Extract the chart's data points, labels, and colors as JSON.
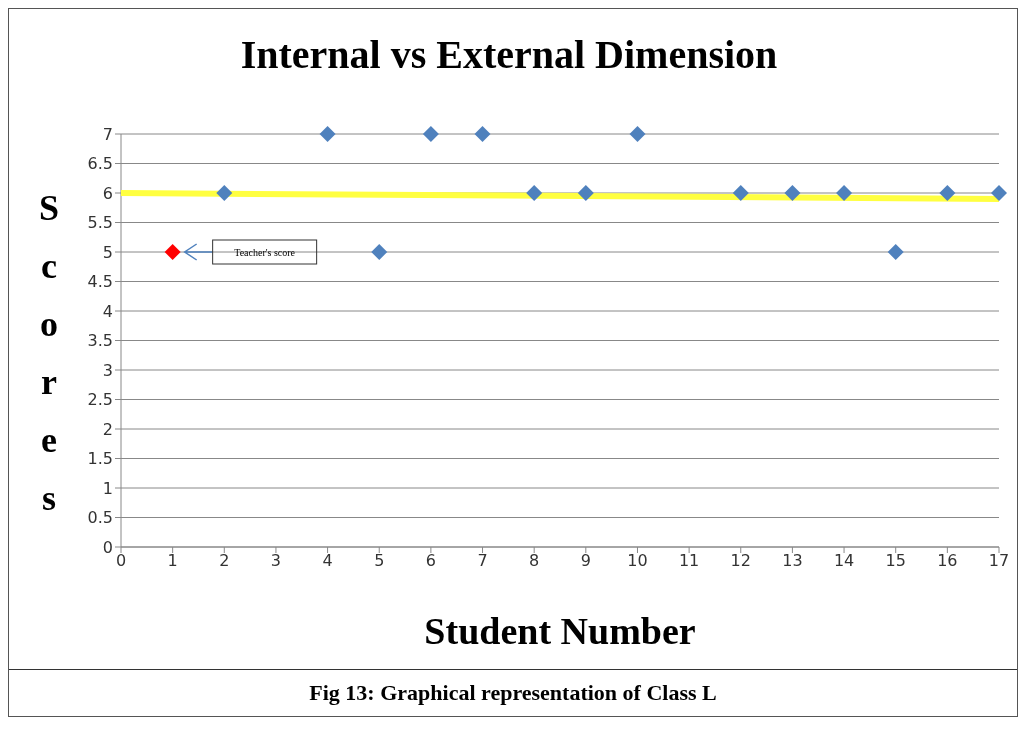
{
  "chart_data": {
    "type": "scatter",
    "title": "Internal vs External Dimension",
    "xlabel": "Student Number",
    "ylabel": "Scores",
    "series": [
      {
        "color": "#4f81bd",
        "x": [
          2,
          4,
          5,
          6,
          7,
          8,
          9,
          10,
          12,
          13,
          14,
          15,
          16,
          17
        ],
        "values": [
          6,
          7,
          5,
          7,
          7,
          6,
          6,
          7,
          6,
          6,
          6,
          5,
          6,
          6
        ]
      },
      {
        "color": "#ff0000",
        "x": [
          1
        ],
        "values": [
          5
        ]
      },
      {
        "type": "line",
        "color": "#ffff40",
        "marker": "none",
        "x": [
          0,
          17
        ],
        "values": [
          6,
          5.9
        ]
      }
    ],
    "xlim": [
      0,
      17
    ],
    "xticks": [
      0,
      1,
      2,
      3,
      4,
      5,
      6,
      7,
      8,
      9,
      10,
      11,
      12,
      13,
      14,
      15,
      16,
      17
    ],
    "ylim": [
      0,
      7
    ],
    "yticks": [
      0,
      0.5,
      1,
      1.5,
      2,
      2.5,
      3,
      3.5,
      4,
      4.5,
      5,
      5.5,
      6,
      6.5,
      7
    ],
    "grid": "y",
    "legend": false,
    "marker": "diamond",
    "annotations": [
      "Teacher's score",
      "Fig 13: Graphical representation of Class L"
    ]
  }
}
